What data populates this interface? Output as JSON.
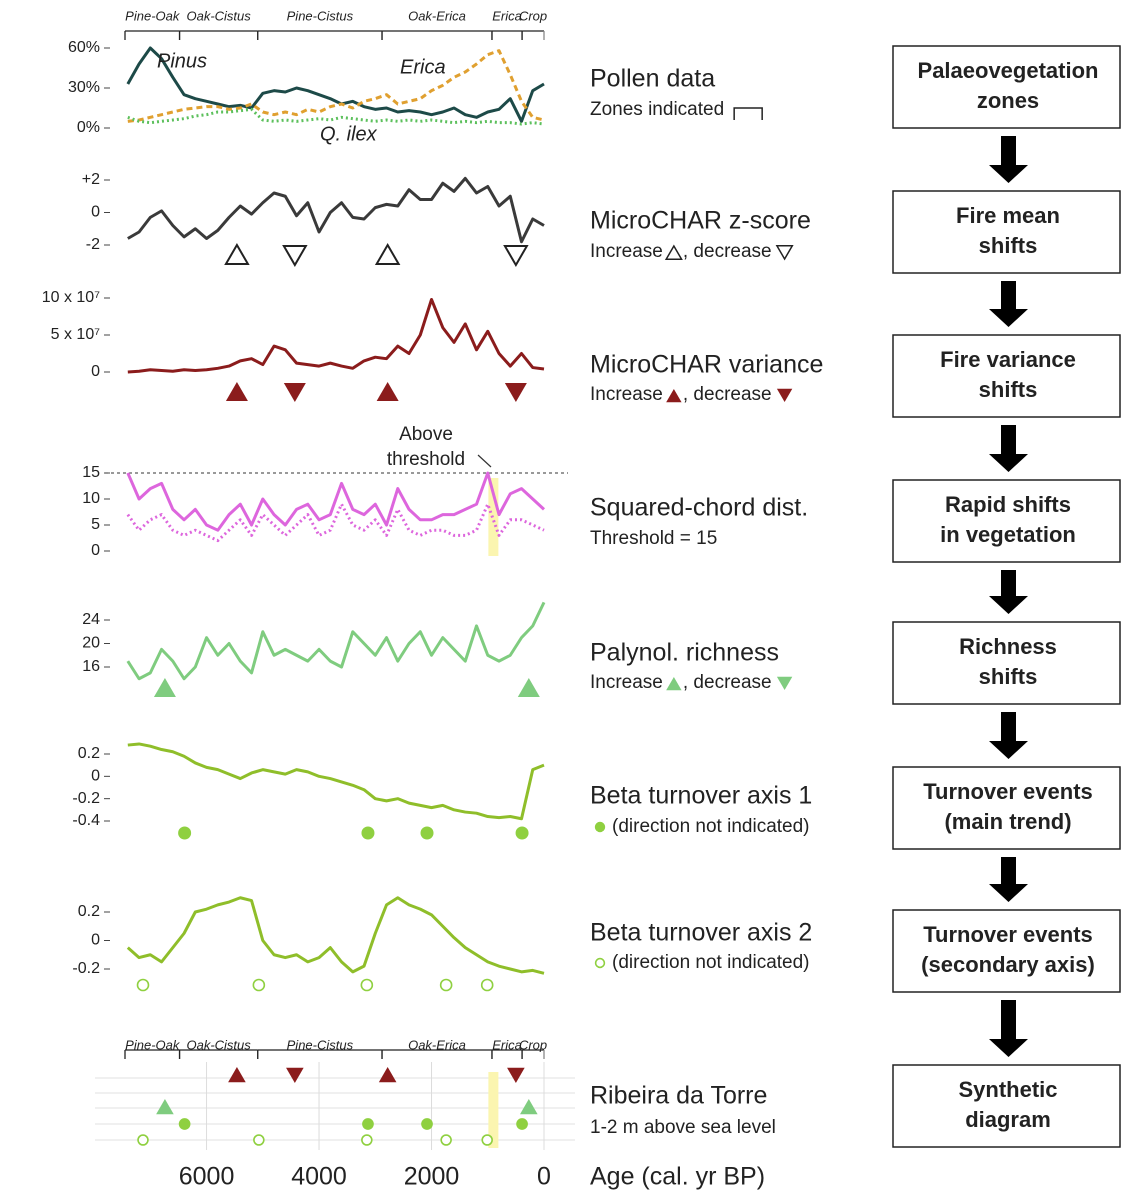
{
  "x_axis": {
    "xlim": [
      7450,
      0
    ],
    "xticks": [
      6000,
      4000,
      2000,
      0
    ],
    "xlabel": "Age (cal. yr BP)"
  },
  "zones": [
    {
      "name": "Pine-Oak",
      "start": 7450,
      "end": 6480
    },
    {
      "name": "Oak-Cistus",
      "start": 6480,
      "end": 5090
    },
    {
      "name": "Pine-Cistus",
      "start": 5090,
      "end": 2880
    },
    {
      "name": "Oak-Erica",
      "start": 2880,
      "end": 925
    },
    {
      "name": "Erica",
      "start": 925,
      "end": 390
    },
    {
      "name": "Crop",
      "start": 390,
      "end": 0
    }
  ],
  "chart_data": [
    {
      "type": "line",
      "title": "Pollen data",
      "subtitle": "Zones indicated",
      "x": [
        7400,
        7200,
        7000,
        6800,
        6600,
        6400,
        6200,
        6000,
        5800,
        5600,
        5400,
        5200,
        5000,
        4800,
        4600,
        4400,
        4200,
        4000,
        3800,
        3600,
        3400,
        3200,
        3000,
        2800,
        2600,
        2400,
        2200,
        2000,
        1800,
        1600,
        1400,
        1200,
        1000,
        800,
        600,
        400,
        200,
        0
      ],
      "ylim": [
        0,
        60
      ],
      "yticks": [
        {
          "value": 0,
          "label": "0%"
        },
        {
          "value": 30,
          "label": "30%"
        },
        {
          "value": 60,
          "label": "60%"
        }
      ],
      "series": [
        {
          "name": "Pinus",
          "color": "#1d4a48",
          "style": "solid",
          "values": [
            33,
            48,
            60,
            52,
            38,
            25,
            22,
            20,
            18,
            16,
            17,
            15,
            26,
            28,
            27,
            30,
            28,
            25,
            22,
            18,
            20,
            16,
            14,
            15,
            12,
            13,
            12,
            10,
            12,
            15,
            10,
            8,
            12,
            14,
            22,
            5,
            28,
            33
          ]
        },
        {
          "name": "Erica",
          "color": "#e0a030",
          "style": "dashed",
          "values": [
            5,
            6,
            8,
            10,
            12,
            14,
            15,
            16,
            16,
            14,
            15,
            18,
            12,
            10,
            12,
            10,
            14,
            12,
            16,
            18,
            15,
            20,
            22,
            25,
            18,
            20,
            22,
            28,
            32,
            38,
            42,
            48,
            55,
            58,
            40,
            20,
            8,
            6
          ]
        },
        {
          "name": "Q. ilex",
          "color": "#5cc05c",
          "style": "dotted",
          "values": [
            8,
            5,
            4,
            5,
            6,
            7,
            9,
            10,
            12,
            12,
            13,
            14,
            6,
            5,
            6,
            5,
            6,
            7,
            6,
            8,
            7,
            6,
            5,
            6,
            5,
            6,
            5,
            6,
            5,
            4,
            5,
            4,
            5,
            4,
            4,
            3,
            4,
            3
          ]
        }
      ]
    },
    {
      "type": "line",
      "title": "MicroCHAR z-score",
      "legend": {
        "increase": "Increase",
        "decrease": ", decrease"
      },
      "x": [
        7400,
        7200,
        7000,
        6800,
        6600,
        6400,
        6200,
        6000,
        5800,
        5600,
        5400,
        5200,
        5000,
        4800,
        4600,
        4400,
        4200,
        4000,
        3800,
        3600,
        3400,
        3200,
        3000,
        2800,
        2600,
        2400,
        2200,
        2000,
        1800,
        1600,
        1400,
        1200,
        1000,
        800,
        600,
        400,
        200,
        0
      ],
      "ylim": [
        -2,
        2
      ],
      "yticks": [
        {
          "value": 2,
          "label": "+2"
        },
        0,
        -2
      ],
      "series": [
        {
          "color": "#3a3a3a",
          "style": "solid",
          "values": [
            -1.6,
            -1.2,
            -0.3,
            0.1,
            -0.8,
            -1.5,
            -1,
            -1.6,
            -1.1,
            -0.3,
            0.4,
            -0.1,
            0.6,
            1.2,
            1,
            -0.2,
            0.6,
            -1.2,
            0,
            0.6,
            -0.3,
            -0.4,
            0.3,
            0.5,
            0.4,
            1.4,
            0.8,
            0.8,
            1.8,
            1.3,
            2.1,
            1.2,
            1.6,
            0.4,
            1.0,
            -1.8,
            -0.4,
            -0.8
          ]
        }
      ],
      "events": {
        "marker": "open",
        "color": "#222222",
        "up": [
          5460,
          2780
        ],
        "down": [
          4430,
          500
        ]
      }
    },
    {
      "type": "line",
      "title": "MicroCHAR variance",
      "legend": {
        "increase": "Increase",
        "decrease": ", decrease"
      },
      "x": [
        7400,
        7200,
        7000,
        6800,
        6600,
        6400,
        6200,
        6000,
        5800,
        5600,
        5400,
        5200,
        5000,
        4800,
        4600,
        4400,
        4200,
        4000,
        3800,
        3600,
        3400,
        3200,
        3000,
        2800,
        2600,
        2400,
        2200,
        2000,
        1800,
        1600,
        1400,
        1200,
        1000,
        800,
        600,
        400,
        200,
        0
      ],
      "ylim": [
        0,
        100000000
      ],
      "yticks": [
        {
          "value": 100000000,
          "label": "10 x 10⁷"
        },
        {
          "value": 50000000,
          "label": "5 x 10⁷"
        },
        0
      ],
      "series": [
        {
          "color": "#8b1c1c",
          "style": "solid",
          "values": [
            0,
            1000000,
            3000000,
            2000000,
            1000000,
            3000000,
            2000000,
            3000000,
            5000000,
            8000000,
            15000000,
            18000000,
            10000000,
            35000000,
            30000000,
            12000000,
            10000000,
            8000000,
            12000000,
            8000000,
            5000000,
            15000000,
            20000000,
            18000000,
            35000000,
            25000000,
            50000000,
            98000000,
            60000000,
            40000000,
            65000000,
            30000000,
            55000000,
            25000000,
            8000000,
            25000000,
            6000000,
            4000000
          ]
        }
      ],
      "events": {
        "marker": "filled",
        "color": "#8b1c1c",
        "up": [
          5460,
          2780
        ],
        "down": [
          4430,
          500
        ]
      }
    },
    {
      "type": "line",
      "title": "Squared-chord dist.",
      "subtitle": "Threshold = 15",
      "threshold": 15,
      "annotation": [
        "Above",
        "threshold"
      ],
      "above_threshold": 900,
      "x": [
        7400,
        7200,
        7000,
        6800,
        6600,
        6400,
        6200,
        6000,
        5800,
        5600,
        5400,
        5200,
        5000,
        4800,
        4600,
        4400,
        4200,
        4000,
        3800,
        3600,
        3400,
        3200,
        3000,
        2800,
        2600,
        2400,
        2200,
        2000,
        1800,
        1600,
        1400,
        1200,
        1000,
        800,
        600,
        400,
        200,
        0
      ],
      "ylim": [
        0,
        15
      ],
      "yticks": [
        0,
        5,
        10,
        15
      ],
      "series": [
        {
          "color": "#dd66dd",
          "style": "solid",
          "values": [
            15,
            10,
            12,
            13,
            8,
            6,
            8,
            5,
            4,
            7,
            9,
            5,
            10,
            7,
            5,
            8,
            9,
            6,
            7,
            13,
            8,
            7,
            9,
            5,
            12,
            8,
            6,
            6,
            7,
            7,
            8,
            9,
            15,
            7,
            11,
            12,
            10,
            8
          ]
        },
        {
          "color": "#dd66dd",
          "style": "dotted",
          "values": [
            7,
            4,
            6,
            7,
            4,
            3,
            4,
            3,
            2,
            4,
            6,
            3,
            7,
            5,
            3,
            5,
            7,
            3,
            4,
            9,
            5,
            4,
            6,
            3,
            8,
            4,
            3,
            4,
            4,
            3,
            3,
            4,
            9,
            3,
            6,
            6,
            5,
            4
          ]
        }
      ]
    },
    {
      "type": "line",
      "title": "Palynol. richness",
      "legend": {
        "increase": "Increase",
        "decrease": ", decrease"
      },
      "x": [
        7400,
        7200,
        7000,
        6800,
        6600,
        6400,
        6200,
        6000,
        5800,
        5600,
        5400,
        5200,
        5000,
        4800,
        4600,
        4400,
        4200,
        4000,
        3800,
        3600,
        3400,
        3200,
        3000,
        2800,
        2600,
        2400,
        2200,
        2000,
        1800,
        1600,
        1400,
        1200,
        1000,
        800,
        600,
        400,
        200,
        0
      ],
      "ylim": [
        16,
        24
      ],
      "yticks": [
        16,
        20,
        24
      ],
      "series": [
        {
          "color": "#7fcc7f",
          "style": "solid",
          "values": [
            17,
            14,
            15,
            19,
            17,
            14,
            16,
            21,
            18,
            20,
            17,
            15,
            22,
            18,
            19,
            18,
            17,
            19,
            17,
            16,
            22,
            20,
            18,
            21,
            17,
            20,
            22,
            18,
            21,
            19,
            17,
            23,
            18,
            17,
            18,
            21,
            23,
            27
          ]
        }
      ],
      "events": {
        "marker": "filled",
        "color": "#7fcc7f",
        "up": [
          6740,
          270
        ],
        "down": []
      }
    },
    {
      "type": "line",
      "title": "Beta turnover axis 1",
      "legend": {
        "text": "(direction not indicated)"
      },
      "x": [
        7400,
        7200,
        7000,
        6800,
        6600,
        6400,
        6200,
        6000,
        5800,
        5600,
        5400,
        5200,
        5000,
        4800,
        4600,
        4400,
        4200,
        4000,
        3800,
        3600,
        3400,
        3200,
        3000,
        2800,
        2600,
        2400,
        2200,
        2000,
        1800,
        1600,
        1400,
        1200,
        1000,
        800,
        600,
        400,
        200,
        0
      ],
      "ylim": [
        -0.4,
        0.2
      ],
      "yticks": [
        -0.4,
        -0.2,
        0,
        0.2
      ],
      "series": [
        {
          "color": "#8fbe2a",
          "style": "solid",
          "values": [
            0.28,
            0.29,
            0.27,
            0.24,
            0.22,
            0.18,
            0.12,
            0.08,
            0.06,
            0.02,
            -0.02,
            0.03,
            0.06,
            0.04,
            0.02,
            0.06,
            0.04,
            0.0,
            -0.02,
            -0.05,
            -0.08,
            -0.12,
            -0.2,
            -0.22,
            -0.2,
            -0.24,
            -0.26,
            -0.28,
            -0.26,
            -0.3,
            -0.32,
            -0.33,
            -0.36,
            -0.37,
            -0.36,
            -0.38,
            0.06,
            0.1
          ]
        }
      ],
      "events": {
        "marker": "dot",
        "color": "#8fd040",
        "points": [
          6390,
          3130,
          2080,
          390
        ]
      }
    },
    {
      "type": "line",
      "title": "Beta turnover axis 2",
      "legend": {
        "text": "(direction not indicated)"
      },
      "x": [
        7400,
        7200,
        7000,
        6800,
        6600,
        6400,
        6200,
        6000,
        5800,
        5600,
        5400,
        5200,
        5000,
        4800,
        4600,
        4400,
        4200,
        4000,
        3800,
        3600,
        3400,
        3200,
        3000,
        2800,
        2600,
        2400,
        2200,
        2000,
        1800,
        1600,
        1400,
        1200,
        1000,
        800,
        600,
        400,
        200,
        0
      ],
      "ylim": [
        -0.2,
        0.2
      ],
      "yticks": [
        -0.2,
        0,
        0.2
      ],
      "series": [
        {
          "color": "#8fbe2a",
          "style": "solid",
          "values": [
            -0.05,
            -0.12,
            -0.1,
            -0.15,
            -0.05,
            0.05,
            0.2,
            0.22,
            0.25,
            0.27,
            0.3,
            0.28,
            0.0,
            -0.1,
            -0.12,
            -0.1,
            -0.15,
            -0.12,
            -0.05,
            -0.15,
            -0.22,
            -0.18,
            0.05,
            0.25,
            0.3,
            0.25,
            0.22,
            0.18,
            0.1,
            0.02,
            -0.05,
            -0.1,
            -0.15,
            -0.18,
            -0.2,
            -0.22,
            -0.21,
            -0.23
          ]
        }
      ],
      "events": {
        "marker": "circle",
        "color": "#8fd040",
        "points": [
          7130,
          5070,
          3150,
          1740,
          1010
        ]
      }
    },
    {
      "type": "synthetic",
      "title": "Ribeira da Torre",
      "subtitle": "1-2 m above sea level"
    }
  ],
  "flow": [
    [
      "Palaeovegetation",
      "zones"
    ],
    [
      "Fire mean",
      "shifts"
    ],
    [
      "Fire variance",
      "shifts"
    ],
    [
      "Rapid shifts",
      "in vegetation"
    ],
    [
      "Richness",
      "shifts"
    ],
    [
      "Turnover events",
      "(main trend)"
    ],
    [
      "Turnover events",
      "(secondary axis)"
    ],
    [
      "Synthetic",
      "diagram"
    ]
  ]
}
